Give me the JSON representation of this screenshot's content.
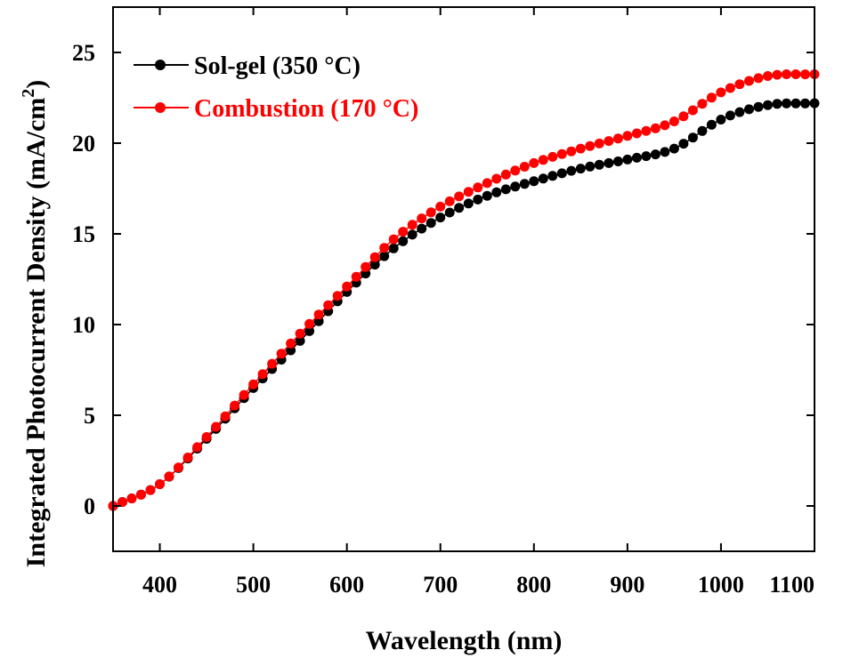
{
  "chart_data": {
    "type": "line",
    "xlabel": "Wavelength (nm)",
    "ylabel": "Integrated Photocurrent Density (mA/cm",
    "ylabel_sup": "2",
    "ylabel_close": ")",
    "xlim": [
      350,
      1100
    ],
    "ylim": [
      -2.5,
      27.5
    ],
    "xticks": [
      400,
      500,
      600,
      700,
      800,
      900,
      1000,
      1100
    ],
    "yticks": [
      0,
      5,
      10,
      15,
      20,
      25
    ],
    "legend_position": "top-left",
    "series": [
      {
        "name": "Sol-gel (350 °C)",
        "color": "#000000",
        "x": [
          350,
          400,
          450,
          500,
          550,
          600,
          650,
          700,
          750,
          800,
          850,
          900,
          950,
          1000,
          1050,
          1100
        ],
        "y": [
          0,
          1.2,
          3.7,
          6.5,
          9.1,
          11.8,
          14.2,
          15.9,
          17.1,
          17.9,
          18.6,
          19.1,
          19.7,
          21.3,
          22.1,
          22.2
        ]
      },
      {
        "name": "Combustion (170 °C)",
        "color": "#ff0000",
        "x": [
          350,
          400,
          450,
          500,
          550,
          600,
          650,
          700,
          750,
          800,
          850,
          900,
          950,
          1000,
          1050,
          1100
        ],
        "y": [
          0,
          1.2,
          3.8,
          6.7,
          9.5,
          12.1,
          14.7,
          16.5,
          17.8,
          18.9,
          19.7,
          20.4,
          21.2,
          22.8,
          23.7,
          23.8
        ]
      }
    ]
  }
}
